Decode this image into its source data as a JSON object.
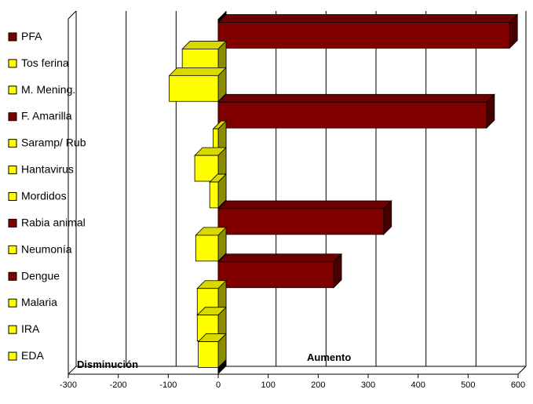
{
  "chart_data": {
    "type": "bar",
    "orientation": "horizontal",
    "categories": [
      "PFA",
      "Tos ferina",
      "M. Mening.",
      "F. Amarilla",
      "Saramp/ Rub",
      "Hantavirus",
      "Mordidos",
      "Rabia animal",
      "Neumonía",
      "Dengue",
      "Malaria",
      "IRA",
      "EDA"
    ],
    "values": [
      583,
      -72,
      -98,
      537,
      -10,
      -47,
      -17,
      331,
      -45,
      231,
      -42,
      -42,
      -40
    ],
    "legend_colors": [
      "#800000",
      "#FFFF00",
      "#FFFF00",
      "#800000",
      "#FFFF00",
      "#FFFF00",
      "#FFFF00",
      "#800000",
      "#FFFF00",
      "#800000",
      "#FFFF00",
      "#FFFF00",
      "#FFFF00"
    ],
    "xlim": [
      -300,
      600
    ],
    "x_ticks": [
      "-300",
      "-200",
      "-100",
      "0",
      "100",
      "200",
      "300",
      "400",
      "500",
      "600"
    ],
    "grid": "vertical",
    "legend_position": "left",
    "annotations": {
      "decrease": "Disminución",
      "increase": "Aumento"
    },
    "colors": {
      "increase_bar": "#800000",
      "decrease_bar": "#FFFF00",
      "grid": "#000000",
      "zero_wall": "#000000"
    }
  }
}
